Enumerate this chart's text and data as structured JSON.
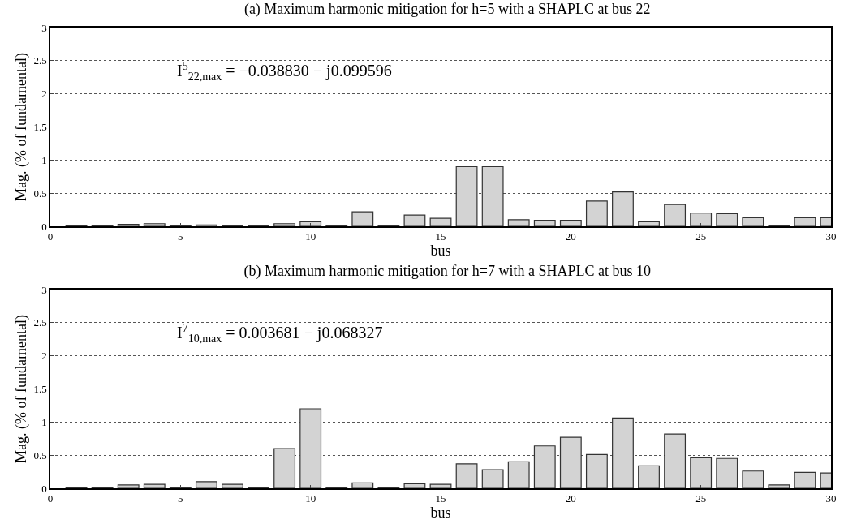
{
  "chart_data": [
    {
      "type": "bar",
      "title": "(a) Maximum harmonic mitigation for h=5 with a SHAPLC at bus 22",
      "xlabel": "bus",
      "ylabel": "Mag. (% of fundamental)",
      "annotations": [
        "I$^{5}$$_{22,max}$ = −0.038830 − j0.099596"
      ],
      "x": [
        1,
        2,
        3,
        4,
        5,
        6,
        7,
        8,
        9,
        10,
        11,
        12,
        13,
        14,
        15,
        16,
        17,
        18,
        19,
        20,
        21,
        22,
        23,
        24,
        25,
        26,
        27,
        28,
        29,
        30
      ],
      "values": [
        0.01,
        0.01,
        0.03,
        0.04,
        0.01,
        0.02,
        0.01,
        0.01,
        0.04,
        0.07,
        0.01,
        0.22,
        0.01,
        0.17,
        0.12,
        0.9,
        0.9,
        0.1,
        0.09,
        0.09,
        0.38,
        0.52,
        0.07,
        0.33,
        0.2,
        0.19,
        0.13,
        0.01,
        0.13,
        0.13
      ],
      "color": "#d3d3d3",
      "xlim": [
        0,
        30
      ],
      "xticks": [
        0,
        5,
        10,
        15,
        20,
        25,
        30
      ],
      "ylim": [
        0,
        3
      ],
      "yticks": [
        0,
        0.5,
        1,
        1.5,
        2,
        2.5,
        3
      ],
      "grid": "y"
    },
    {
      "type": "bar",
      "title": "(b) Maximum harmonic mitigation for h=7 with a SHAPLC at bus 10",
      "xlabel": "bus",
      "ylabel": "Mag. (% of fundamental)",
      "annotations": [
        "I$^{7}$$_{10,max}$ = 0.003681 − j0.068327"
      ],
      "x": [
        1,
        2,
        3,
        4,
        5,
        6,
        7,
        8,
        9,
        10,
        11,
        12,
        13,
        14,
        15,
        16,
        17,
        18,
        19,
        20,
        21,
        22,
        23,
        24,
        25,
        26,
        27,
        28,
        29,
        30
      ],
      "values": [
        0.01,
        0.01,
        0.05,
        0.06,
        0.01,
        0.1,
        0.06,
        0.01,
        0.6,
        1.2,
        0.01,
        0.08,
        0.01,
        0.07,
        0.06,
        0.37,
        0.28,
        0.4,
        0.64,
        0.77,
        0.51,
        1.06,
        0.34,
        0.82,
        0.46,
        0.45,
        0.26,
        0.05,
        0.24,
        0.23
      ],
      "color": "#d3d3d3",
      "xlim": [
        0,
        30
      ],
      "xticks": [
        0,
        5,
        10,
        15,
        20,
        25,
        30
      ],
      "ylim": [
        0,
        3
      ],
      "yticks": [
        0,
        0.5,
        1,
        1.5,
        2,
        2.5,
        3
      ],
      "grid": "y"
    }
  ]
}
